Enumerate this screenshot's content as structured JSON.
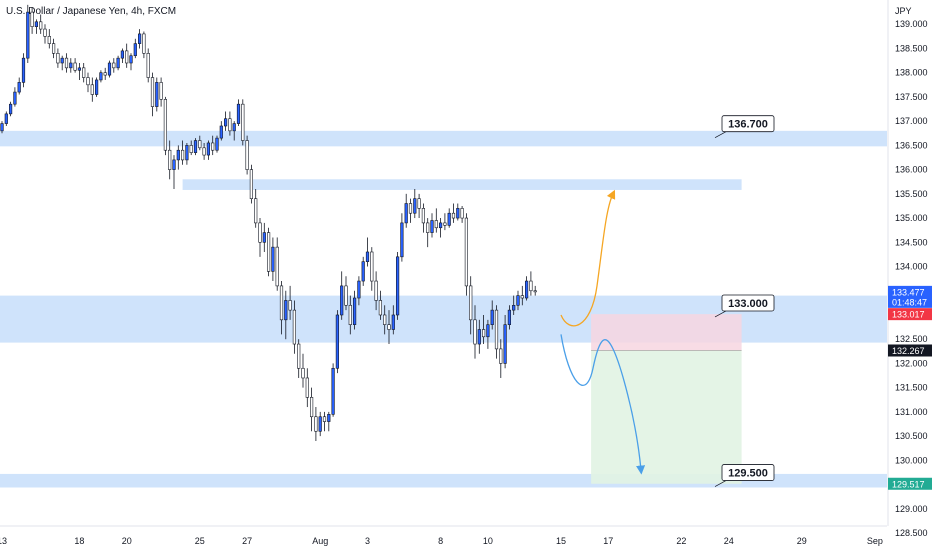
{
  "header": {
    "symbol_title": "U.S. Dollar / Japanese Yen, 4h, FXCM",
    "currency": "JPY"
  },
  "chart_data": {
    "type": "candlestick",
    "y_ticks": [
      "139.000",
      "138.500",
      "138.000",
      "137.500",
      "137.000",
      "136.500",
      "136.000",
      "135.500",
      "135.000",
      "134.500",
      "134.000",
      "133.500",
      "133.000",
      "132.500",
      "132.000",
      "131.500",
      "131.000",
      "130.500",
      "130.000",
      "129.500",
      "129.000",
      "128.500"
    ],
    "y_tick_values": [
      139.0,
      138.5,
      138.0,
      137.5,
      137.0,
      136.5,
      136.0,
      135.5,
      135.0,
      134.5,
      134.0,
      133.5,
      133.0,
      132.5,
      132.0,
      131.5,
      131.0,
      130.5,
      130.0,
      129.5,
      129.0,
      128.5
    ],
    "x_ticks": [
      "13",
      "18",
      "20",
      "25",
      "27",
      "Aug",
      "3",
      "8",
      "10",
      "15",
      "17",
      "22",
      "24",
      "29",
      "Sep"
    ],
    "x_tick_index": [
      0,
      18,
      29,
      46,
      57,
      74,
      85,
      102,
      113,
      130,
      141,
      158,
      169,
      186,
      203
    ],
    "ylim": [
      128.15,
      139.5
    ],
    "candles": [
      [
        136.8,
        137.0,
        136.75,
        136.95
      ],
      [
        136.95,
        137.2,
        136.9,
        137.15
      ],
      [
        137.15,
        137.4,
        137.1,
        137.35
      ],
      [
        137.35,
        137.7,
        137.3,
        137.6
      ],
      [
        137.6,
        137.9,
        137.55,
        137.8
      ],
      [
        137.8,
        138.4,
        137.7,
        138.3
      ],
      [
        138.3,
        139.4,
        138.2,
        139.25
      ],
      [
        139.25,
        139.35,
        138.8,
        138.95
      ],
      [
        138.95,
        139.1,
        138.8,
        139.05
      ],
      [
        139.05,
        139.2,
        138.8,
        138.9
      ],
      [
        138.9,
        139.0,
        138.6,
        138.75
      ],
      [
        138.75,
        138.9,
        138.5,
        138.6
      ],
      [
        138.6,
        138.7,
        138.3,
        138.4
      ],
      [
        138.4,
        138.5,
        138.1,
        138.2
      ],
      [
        138.2,
        138.35,
        138.05,
        138.3
      ],
      [
        138.3,
        138.4,
        138.0,
        138.1
      ],
      [
        138.1,
        138.3,
        138.0,
        138.2
      ],
      [
        138.2,
        138.3,
        138.0,
        138.05
      ],
      [
        138.05,
        138.2,
        137.85,
        138.1
      ],
      [
        138.1,
        138.2,
        137.8,
        137.9
      ],
      [
        137.9,
        138.0,
        137.6,
        137.75
      ],
      [
        137.75,
        137.9,
        137.4,
        137.55
      ],
      [
        137.55,
        137.9,
        137.5,
        137.85
      ],
      [
        137.85,
        138.05,
        137.8,
        138.0
      ],
      [
        138.0,
        138.1,
        137.85,
        137.95
      ],
      [
        137.95,
        138.25,
        137.9,
        138.2
      ],
      [
        138.2,
        138.3,
        138.0,
        138.1
      ],
      [
        138.1,
        138.35,
        138.05,
        138.3
      ],
      [
        138.3,
        138.5,
        138.2,
        138.45
      ],
      [
        138.45,
        138.6,
        138.1,
        138.2
      ],
      [
        138.2,
        138.4,
        138.05,
        138.35
      ],
      [
        138.35,
        138.7,
        138.3,
        138.6
      ],
      [
        138.6,
        138.9,
        138.5,
        138.8
      ],
      [
        138.8,
        138.85,
        138.3,
        138.4
      ],
      [
        138.4,
        138.5,
        137.8,
        137.9
      ],
      [
        137.9,
        138.0,
        137.1,
        137.3
      ],
      [
        137.3,
        137.9,
        137.2,
        137.8
      ],
      [
        137.8,
        137.9,
        137.3,
        137.45
      ],
      [
        137.45,
        137.5,
        136.3,
        136.4
      ],
      [
        136.4,
        136.6,
        135.8,
        136.0
      ],
      [
        136.0,
        136.3,
        135.6,
        136.2
      ],
      [
        136.2,
        136.5,
        136.0,
        136.4
      ],
      [
        136.4,
        136.6,
        136.1,
        136.2
      ],
      [
        136.2,
        136.55,
        136.1,
        136.5
      ],
      [
        136.5,
        136.6,
        136.3,
        136.35
      ],
      [
        136.35,
        136.65,
        136.3,
        136.6
      ],
      [
        136.6,
        136.7,
        136.4,
        136.45
      ],
      [
        136.45,
        136.55,
        136.2,
        136.3
      ],
      [
        136.3,
        136.6,
        136.2,
        136.55
      ],
      [
        136.55,
        136.7,
        136.3,
        136.4
      ],
      [
        136.4,
        136.7,
        136.35,
        136.65
      ],
      [
        136.65,
        137.0,
        136.6,
        136.9
      ],
      [
        136.9,
        137.2,
        136.8,
        137.05
      ],
      [
        137.05,
        137.2,
        136.7,
        136.8
      ],
      [
        136.8,
        137.0,
        136.6,
        136.95
      ],
      [
        136.95,
        137.45,
        136.9,
        137.35
      ],
      [
        137.35,
        137.45,
        136.5,
        136.6
      ],
      [
        136.6,
        136.7,
        135.9,
        136.0
      ],
      [
        136.0,
        136.1,
        135.3,
        135.4
      ],
      [
        135.4,
        135.6,
        134.8,
        134.9
      ],
      [
        134.9,
        135.0,
        134.2,
        134.5
      ],
      [
        134.5,
        134.9,
        134.3,
        134.7
      ],
      [
        134.7,
        134.8,
        133.8,
        133.9
      ],
      [
        133.9,
        134.6,
        133.7,
        134.4
      ],
      [
        134.4,
        134.6,
        133.5,
        133.6
      ],
      [
        133.6,
        133.7,
        132.6,
        132.9
      ],
      [
        132.9,
        133.5,
        132.5,
        133.3
      ],
      [
        133.3,
        133.6,
        132.9,
        133.1
      ],
      [
        133.1,
        133.3,
        132.2,
        132.4
      ],
      [
        132.4,
        132.5,
        131.7,
        131.9
      ],
      [
        131.9,
        132.2,
        131.5,
        131.7
      ],
      [
        131.7,
        131.9,
        131.1,
        131.3
      ],
      [
        131.3,
        131.5,
        130.6,
        130.9
      ],
      [
        130.9,
        131.1,
        130.4,
        130.6
      ],
      [
        130.6,
        131.0,
        130.5,
        130.9
      ],
      [
        130.9,
        131.0,
        130.6,
        130.8
      ],
      [
        130.8,
        131.0,
        130.6,
        130.95
      ],
      [
        130.95,
        132.0,
        130.9,
        131.9
      ],
      [
        131.9,
        133.1,
        131.8,
        133.0
      ],
      [
        133.0,
        133.9,
        132.9,
        133.6
      ],
      [
        133.6,
        133.8,
        133.1,
        133.2
      ],
      [
        133.2,
        133.4,
        132.6,
        132.8
      ],
      [
        132.8,
        133.5,
        132.7,
        133.35
      ],
      [
        133.35,
        133.8,
        133.2,
        133.7
      ],
      [
        133.7,
        134.2,
        133.6,
        134.1
      ],
      [
        134.1,
        134.6,
        134.0,
        134.3
      ],
      [
        134.3,
        134.4,
        133.5,
        133.7
      ],
      [
        133.7,
        133.9,
        133.1,
        133.3
      ],
      [
        133.3,
        133.5,
        132.9,
        133.0
      ],
      [
        133.0,
        133.2,
        132.6,
        132.8
      ],
      [
        132.8,
        133.1,
        132.4,
        132.7
      ],
      [
        132.7,
        133.2,
        132.6,
        133.0
      ],
      [
        133.0,
        134.3,
        132.9,
        134.2
      ],
      [
        134.2,
        135.1,
        134.1,
        134.9
      ],
      [
        134.9,
        135.5,
        134.8,
        135.3
      ],
      [
        135.3,
        135.4,
        134.9,
        135.1
      ],
      [
        135.1,
        135.6,
        135.0,
        135.4
      ],
      [
        135.4,
        135.5,
        135.0,
        135.2
      ],
      [
        135.2,
        135.3,
        134.7,
        134.9
      ],
      [
        134.9,
        135.0,
        134.4,
        134.7
      ],
      [
        134.7,
        135.1,
        134.6,
        134.95
      ],
      [
        134.95,
        135.2,
        134.7,
        134.8
      ],
      [
        134.8,
        135.0,
        134.6,
        134.9
      ],
      [
        134.9,
        135.1,
        134.75,
        134.85
      ],
      [
        134.85,
        135.2,
        134.8,
        135.1
      ],
      [
        135.1,
        135.3,
        134.9,
        135.0
      ],
      [
        135.0,
        135.3,
        134.95,
        135.2
      ],
      [
        135.2,
        135.25,
        134.9,
        135.0
      ],
      [
        135.0,
        135.1,
        133.4,
        133.6
      ],
      [
        133.6,
        133.8,
        132.6,
        132.9
      ],
      [
        132.9,
        133.2,
        132.1,
        132.4
      ],
      [
        132.4,
        132.9,
        132.2,
        132.7
      ],
      [
        132.7,
        133.0,
        132.4,
        132.55
      ],
      [
        132.55,
        132.9,
        132.3,
        132.8
      ],
      [
        132.8,
        133.3,
        132.7,
        133.1
      ],
      [
        133.1,
        133.2,
        132.1,
        132.3
      ],
      [
        132.3,
        132.5,
        131.7,
        132.0
      ],
      [
        132.0,
        133.0,
        131.9,
        132.8
      ],
      [
        132.8,
        133.2,
        132.7,
        133.1
      ],
      [
        133.1,
        133.4,
        133.0,
        133.2
      ],
      [
        133.2,
        133.5,
        133.1,
        133.4
      ],
      [
        133.4,
        133.6,
        133.2,
        133.35
      ],
      [
        133.35,
        133.8,
        133.3,
        133.7
      ],
      [
        133.7,
        133.9,
        133.4,
        133.5
      ],
      [
        133.5,
        133.6,
        133.4,
        133.477
      ]
    ],
    "zones": [
      {
        "name": "resistance-zone",
        "from": 136.48,
        "to": 136.8,
        "extends_to": "right-edge"
      },
      {
        "name": "supply-zone",
        "from": 135.58,
        "to": 135.8,
        "extends_to": "projection-end"
      },
      {
        "name": "key-zone",
        "from": 132.43,
        "to": 133.4,
        "extends_to": "right-edge"
      },
      {
        "name": "target-zone",
        "from": 129.44,
        "to": 129.72,
        "extends_to": "right-edge"
      }
    ],
    "position": {
      "entry": 132.267,
      "stop": 133.017,
      "target": 129.517,
      "start_index": 137,
      "end_index": 172
    },
    "callouts": [
      {
        "label": "136.700",
        "value": 136.7
      },
      {
        "label": "133.000",
        "value": 133.0
      },
      {
        "label": "129.500",
        "value": 129.5
      }
    ],
    "price_labels": [
      {
        "text": "133.477",
        "subtext": "01:48:47",
        "value": 133.477,
        "color": "#2962ff",
        "text_color": "#ffffff"
      },
      {
        "text": "133.017",
        "value": 133.017,
        "color": "#f23645",
        "text_color": "#ffffff"
      },
      {
        "text": "132.267",
        "value": 132.267,
        "color": "#131722",
        "text_color": "#ffffff"
      },
      {
        "text": "129.517",
        "value": 129.517,
        "color": "#22ab94",
        "text_color": "#ffffff"
      }
    ],
    "colors": {
      "up": "#2962ff",
      "down": "#131722",
      "zone": "#cfe3fb",
      "stop_fill": "#f7d6e0",
      "target_fill": "#e1f3e3",
      "orange_arrow": "#f5a623",
      "blue_arrow": "#4a9fe8"
    }
  }
}
